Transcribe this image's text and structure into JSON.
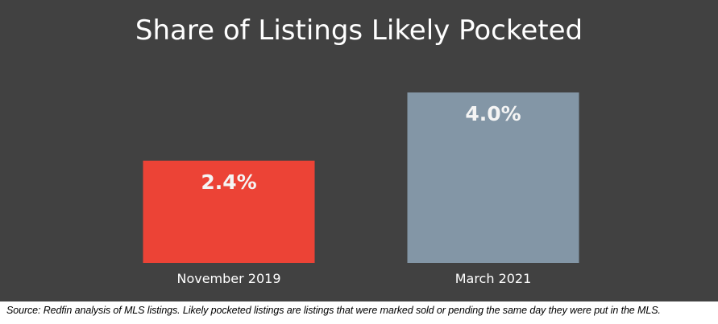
{
  "chart_data": {
    "type": "bar",
    "title": "Share of Listings Likely Pocketed",
    "xlabel": "",
    "ylabel": "",
    "categories": [
      "November 2019",
      "March 2021"
    ],
    "values": [
      2.4,
      4.0
    ],
    "data_labels": [
      "2.4%",
      "4.0%"
    ],
    "bar_colors": [
      "#ec4336",
      "#8396a6"
    ],
    "ylim": [
      0,
      4.0
    ],
    "grid": false
  },
  "footer": {
    "source": "Source: Redfin analysis of MLS listings. Likely pocketed listings are listings that were marked sold or pending the same day they were put in the MLS."
  },
  "colors": {
    "background": "#414141",
    "text": "#ffffff",
    "tick_text": "#ffffff"
  }
}
